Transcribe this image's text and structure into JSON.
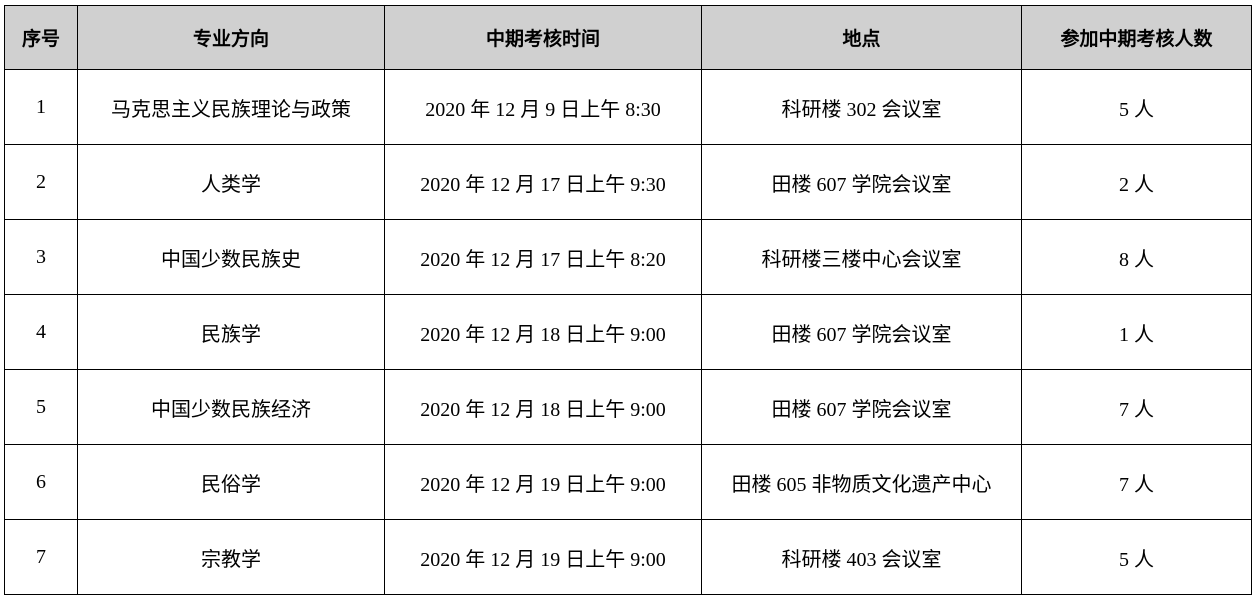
{
  "table": {
    "headers": [
      "序号",
      "专业方向",
      "中期考核时间",
      "地点",
      "参加中期考核人数"
    ],
    "rows": [
      [
        "1",
        "马克思主义民族理论与政策",
        "2020 年 12 月 9 日上午 8:30",
        "科研楼 302 会议室",
        "5 人"
      ],
      [
        "2",
        "人类学",
        "2020 年 12 月 17 日上午 9:30",
        "田楼 607 学院会议室",
        "2 人"
      ],
      [
        "3",
        "中国少数民族史",
        "2020 年 12 月 17 日上午 8:20",
        "科研楼三楼中心会议室",
        "8 人"
      ],
      [
        "4",
        "民族学",
        "2020 年 12 月 18 日上午 9:00",
        "田楼 607 学院会议室",
        "1 人"
      ],
      [
        "5",
        "中国少数民族经济",
        "2020 年 12 月 18 日上午 9:00",
        "田楼 607 学院会议室",
        "7 人"
      ],
      [
        "6",
        "民俗学",
        "2020 年 12 月 19 日上午 9:00",
        "田楼 605 非物质文化遗产中心",
        "7 人"
      ],
      [
        "7",
        "宗教学",
        "2020 年 12 月 19 日上午 9:00",
        "科研楼 403 会议室",
        "5 人"
      ]
    ],
    "header_bg": "#d0d0d0"
  }
}
